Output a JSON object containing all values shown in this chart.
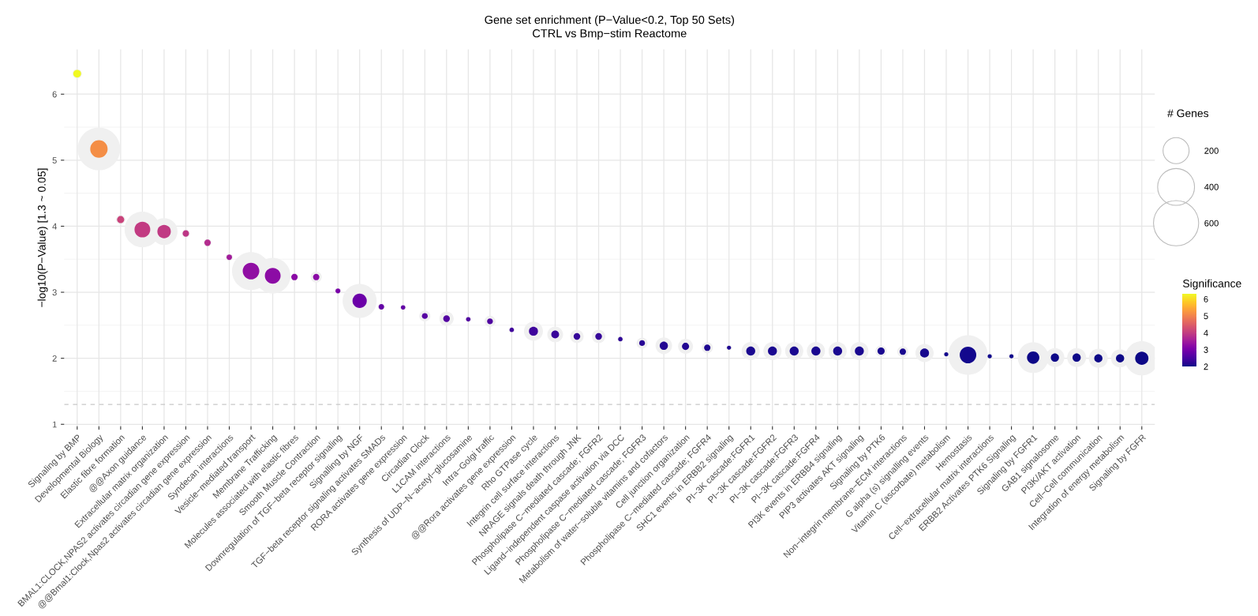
{
  "chart_data": {
    "type": "bubble",
    "title": "Gene set enrichment (P−Value<0.2, Top 50 Sets)",
    "subtitle": "CTRL vs Bmp−stim Reactome",
    "ylabel": "−log10(P−Value) [1.3 ~ 0.05]",
    "legend_title": "# Genes",
    "clabel": "Significance",
    "categories": [
      "Signaling by BMP",
      "Developmental Biology",
      "Elastic fibre formation",
      "@@Axon guidance",
      "Extracellular matrix organization",
      "BMAL1:CLOCK,NPAS2 activates circadian gene expression",
      "@@Bmal1:Clock,Npas2 activates circadian gene expression",
      "Syndecan interactions",
      "Vesicle−mediated transport",
      "Membrane Trafficking",
      "Molecules associated with elastic fibres",
      "Smooth Muscle Contraction",
      "Downregulation of TGF−beta receptor signaling",
      "Signalling by NGF",
      "TGF−beta receptor signaling activates SMADs",
      "RORA activates gene expression",
      "Circadian Clock",
      "L1CAM interactions",
      "Synthesis of UDP−N−acetyl−glucosamine",
      "Intra−Golgi traffic",
      "@@Rora activates gene expression",
      "Rho GTPase cycle",
      "Integrin cell surface interactions",
      "NRAGE signals death through JNK",
      "Phospholipase C−mediated cascade; FGFR2",
      "Ligand−independent caspase activation via DCC",
      "Phospholipase C−mediated cascade; FGFR3",
      "Metabolism of water−soluble vitamins and cofactors",
      "Cell junction organization",
      "Phospholipase C−mediated cascade; FGFR4",
      "SHC1 events in ERBB2 signaling",
      "PI−3K cascade:FGFR1",
      "PI−3K cascade:FGFR2",
      "PI−3K cascade:FGFR3",
      "PI−3K cascade:FGFR4",
      "PI3K events in ERBB4 signaling",
      "PIP3 activates AKT signaling",
      "Signaling by PTK6",
      "Non−integrin membrane−ECM interactions",
      "G alpha (s) signalling events",
      "Vitamin C (ascorbate) metabolism",
      "Hemostasis",
      "Cell−extracellular matrix interactions",
      "ERBB2 Activates PTK6 Signaling",
      "Signaling by FGFR1",
      "GAB1 signalosome",
      "PI3K/AKT activation",
      "Cell−Cell communication",
      "Integration of energy metabolism",
      "Signaling by FGFR"
    ],
    "series": [
      {
        "color": "#f0f0f0",
        "values": [
          6.31,
          5.17,
          4.1,
          3.95,
          3.92,
          3.89,
          3.75,
          3.53,
          3.32,
          3.25,
          3.23,
          3.23,
          3.02,
          2.87,
          2.78,
          2.77,
          2.64,
          2.6,
          2.59,
          2.56,
          2.43,
          2.41,
          2.36,
          2.33,
          2.33,
          2.29,
          2.23,
          2.19,
          2.18,
          2.16,
          2.16,
          2.11,
          2.11,
          2.11,
          2.11,
          2.11,
          2.11,
          2.11,
          2.1,
          2.08,
          2.06,
          2.05,
          2.03,
          2.03,
          2.01,
          2.01,
          2.01,
          2.0,
          2.0,
          2.0
        ],
        "sizes": [
          25,
          535,
          26,
          372,
          212,
          18,
          18,
          15,
          423,
          372,
          18,
          36,
          12,
          340,
          14,
          10,
          36,
          60,
          10,
          36,
          10,
          106,
          73,
          53,
          53,
          10,
          36,
          81,
          66,
          36,
          10,
          97,
          97,
          97,
          97,
          97,
          97,
          36,
          36,
          97,
          10,
          460,
          10,
          10,
          280,
          106,
          106,
          106,
          97,
          340
        ]
      },
      {
        "values": [
          6.31,
          5.17,
          4.1,
          3.95,
          3.92,
          3.89,
          3.75,
          3.53,
          3.32,
          3.25,
          3.23,
          3.23,
          3.02,
          2.87,
          2.78,
          2.77,
          2.64,
          2.6,
          2.59,
          2.56,
          2.43,
          2.41,
          2.36,
          2.33,
          2.33,
          2.29,
          2.23,
          2.19,
          2.18,
          2.16,
          2.16,
          2.11,
          2.11,
          2.11,
          2.11,
          2.11,
          2.11,
          2.11,
          2.1,
          2.08,
          2.06,
          2.05,
          2.03,
          2.03,
          2.01,
          2.01,
          2.01,
          2.0,
          2.0,
          2.0
        ],
        "sizes": [
          18,
          89,
          15,
          73,
          53,
          12,
          12,
          9,
          81,
          73,
          12,
          12,
          7,
          60,
          9,
          6,
          10,
          13,
          6,
          10,
          6,
          24,
          18,
          13,
          13,
          6,
          10,
          20,
          15,
          12,
          5,
          24,
          24,
          24,
          24,
          24,
          24,
          15,
          12,
          24,
          5,
          81,
          5,
          5,
          45,
          20,
          20,
          20,
          20,
          52
        ],
        "colors": [
          "#f0f921",
          "#f48e46",
          "#c9437b",
          "#c23b82",
          "#c03a83",
          "#bd3786",
          "#b32c8e",
          "#a11c9a",
          "#900ea3",
          "#8c0ca5",
          "#8a0ba5",
          "#8a0ba5",
          "#7902a8",
          "#6b00a8",
          "#6301a6",
          "#6201a6",
          "#5602a2",
          "#5302a1",
          "#5203a1",
          "#4f03a0",
          "#41049d",
          "#3f059c",
          "#39059a",
          "#350599",
          "#350599",
          "#2f0697",
          "#280795",
          "#230792",
          "#220792",
          "#1f0791",
          "#1f0791",
          "#1a0890",
          "#1a0890",
          "#1a0890",
          "#1a0890",
          "#1a0890",
          "#1a0890",
          "#1a0890",
          "#19088f",
          "#17088e",
          "#14088d",
          "#13088d",
          "#10088c",
          "#10088c",
          "#0e0888",
          "#0e0888",
          "#0e0888",
          "#0d0887",
          "#0d0887",
          "#0d0887"
        ]
      }
    ],
    "size_legend": [
      200,
      400,
      600
    ],
    "ylim": [
      0.97,
      6.68
    ],
    "yticks": [
      1,
      2,
      3,
      4,
      5,
      6
    ],
    "clim": [
      2.0,
      6.31
    ],
    "cticks": [
      2,
      3,
      4,
      5,
      6
    ],
    "ref_lines": [
      {
        "axis": "y",
        "value": 1.3,
        "color": "#c8c8c8",
        "line_style": "dashed"
      }
    ],
    "grid": true
  }
}
